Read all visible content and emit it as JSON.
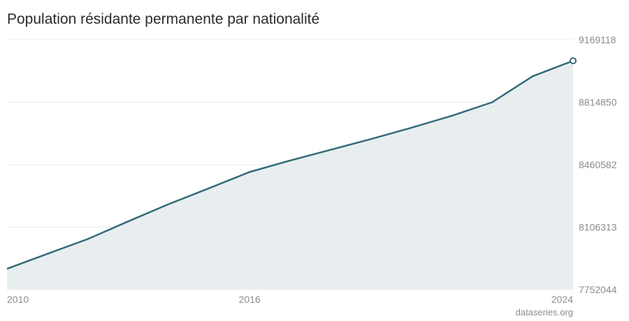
{
  "chart_data": {
    "type": "area",
    "title": "Population résidante permanente par nationalité",
    "xlabel": "",
    "ylabel": "",
    "x": [
      2010,
      2011,
      2012,
      2013,
      2014,
      2015,
      2016,
      2017,
      2018,
      2019,
      2020,
      2021,
      2022,
      2023,
      2024
    ],
    "series": [
      {
        "values": [
          7870000,
          7955000,
          8039000,
          8139000,
          8237000,
          8327000,
          8419000,
          8484000,
          8545000,
          8606000,
          8670000,
          8738000,
          8815000,
          8962000,
          9050000
        ]
      }
    ],
    "ylim": [
      7752044,
      9169118
    ],
    "y_ticks": [
      "7752044",
      "8106313",
      "8460582",
      "8814850",
      "9169118"
    ],
    "x_ticks": [
      "2010",
      "2016",
      "2024"
    ],
    "grid": true,
    "colors": {
      "line": "#336b77",
      "area": "#e8eef0",
      "grid": "#ececec"
    }
  },
  "source": "dataseries.org"
}
